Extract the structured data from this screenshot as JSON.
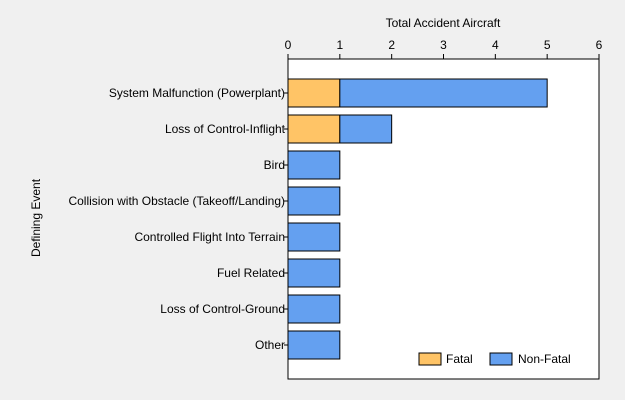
{
  "chart_data": {
    "type": "bar",
    "orientation": "horizontal",
    "stacked": true,
    "title": "",
    "xlabel": "Total Accident Aircraft",
    "ylabel": "Defining Event",
    "xlim": [
      0,
      6
    ],
    "xticks": [
      0,
      1,
      2,
      3,
      4,
      5,
      6
    ],
    "categories": [
      "System Malfunction (Powerplant)",
      "Loss of Control-Inflight",
      "Bird",
      "Collision with Obstacle (Takeoff/Landing)",
      "Controlled Flight Into Terrain",
      "Fuel Related",
      "Loss of Control-Ground",
      "Other"
    ],
    "series": [
      {
        "name": "Fatal",
        "color": "#ffc466",
        "values": [
          1,
          1,
          0,
          0,
          0,
          0,
          0,
          0
        ]
      },
      {
        "name": "Non-Fatal",
        "color": "#64a0f0",
        "values": [
          4,
          1,
          1,
          1,
          1,
          1,
          1,
          1
        ]
      }
    ],
    "legend_position": "bottom-right",
    "grid": false
  }
}
